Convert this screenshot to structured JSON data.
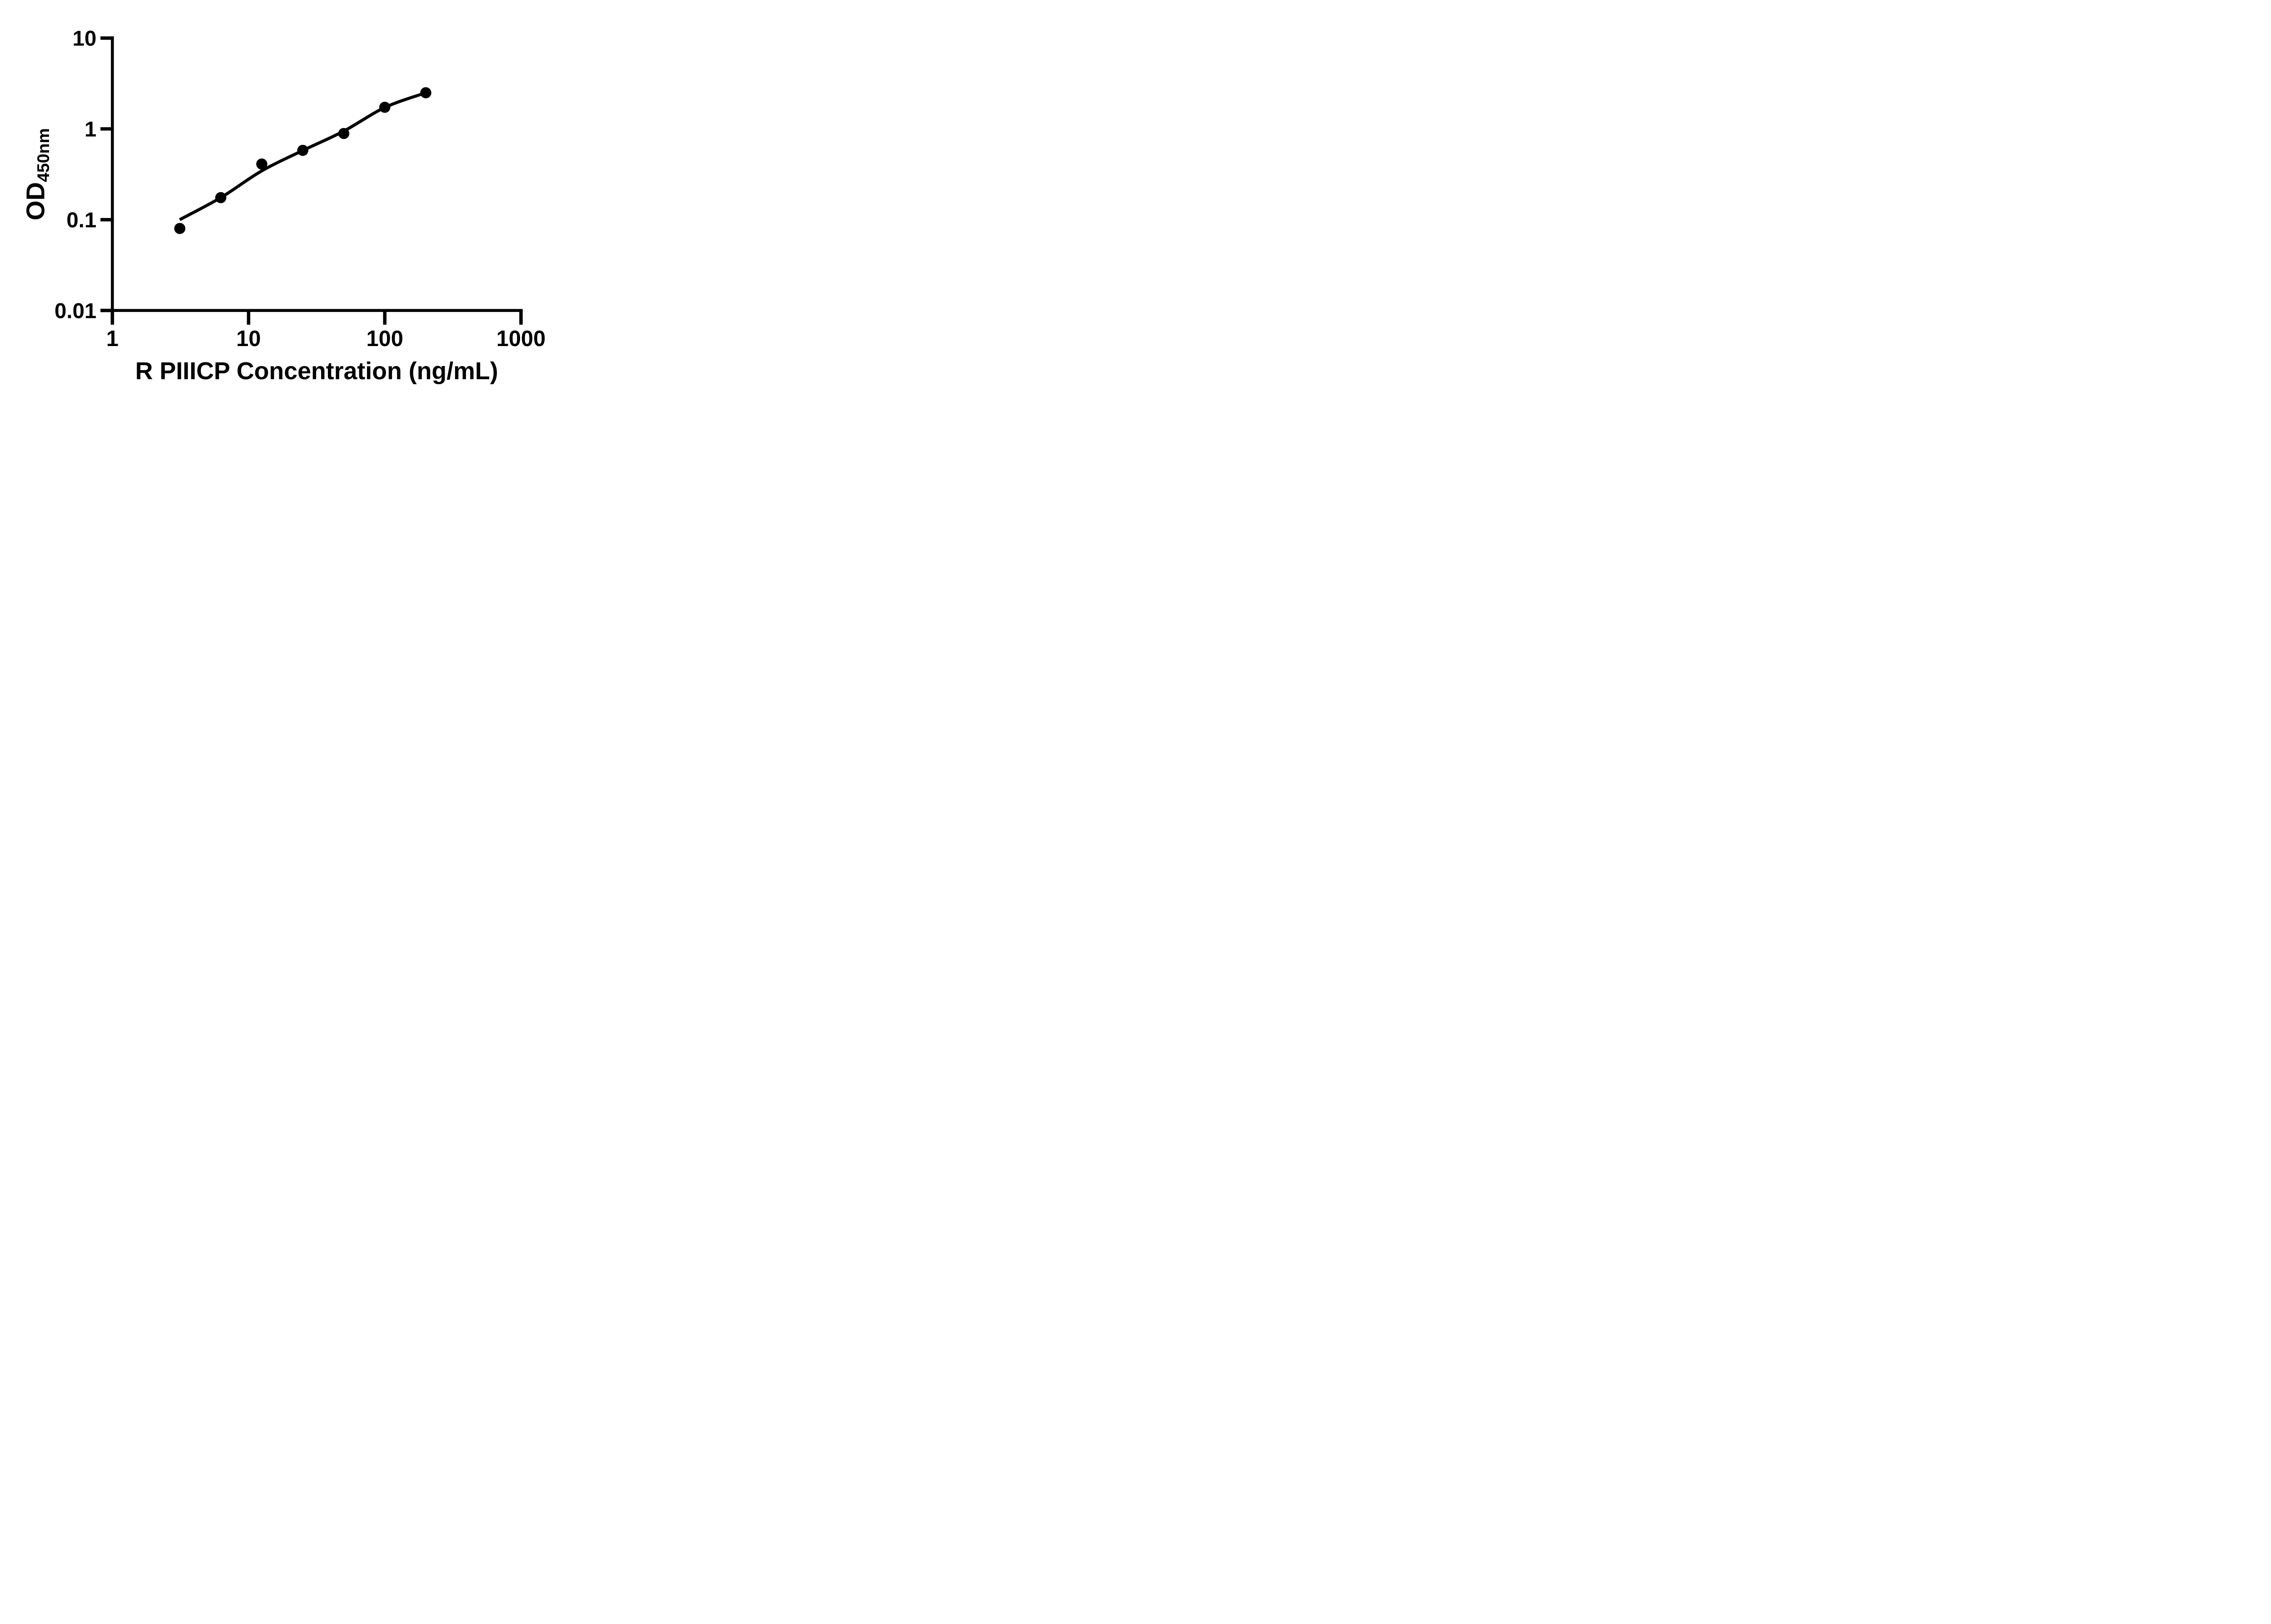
{
  "figure": {
    "kind": "elisa-standard-curve-figure",
    "background_color": "#ffffff",
    "ink_color": "#000000"
  },
  "chart_data": {
    "type": "scatter",
    "title": "",
    "xlabel": "R PIIICP Concentration (ng/mL)",
    "ylabel": "OD450nm",
    "ylabel_base": "OD",
    "ylabel_subscript": "450nm",
    "x_scale": "log10",
    "y_scale": "log10",
    "xlim": [
      1,
      1000
    ],
    "ylim": [
      0.01,
      10
    ],
    "x_ticks": [
      "1",
      "10",
      "100",
      "1000"
    ],
    "y_ticks": [
      "0.01",
      "0.1",
      "1",
      "10"
    ],
    "grid": false,
    "legend": "none",
    "series": [
      {
        "name": "standard-points",
        "type": "scatter",
        "marker": "filled-circle",
        "color": "#000000",
        "points": [
          [
            3.125,
            0.08
          ],
          [
            6.25,
            0.175
          ],
          [
            12.5,
            0.41
          ],
          [
            25,
            0.58
          ],
          [
            50,
            0.89
          ],
          [
            100,
            1.73
          ],
          [
            200,
            2.5
          ]
        ]
      },
      {
        "name": "fitted-curve",
        "type": "smooth-line",
        "color": "#000000",
        "points": [
          [
            3.12,
            0.1
          ],
          [
            6.25,
            0.175
          ],
          [
            12.5,
            0.345
          ],
          [
            25,
            0.578
          ],
          [
            50,
            0.945
          ],
          [
            100,
            1.72
          ],
          [
            200,
            2.5
          ]
        ]
      }
    ]
  }
}
